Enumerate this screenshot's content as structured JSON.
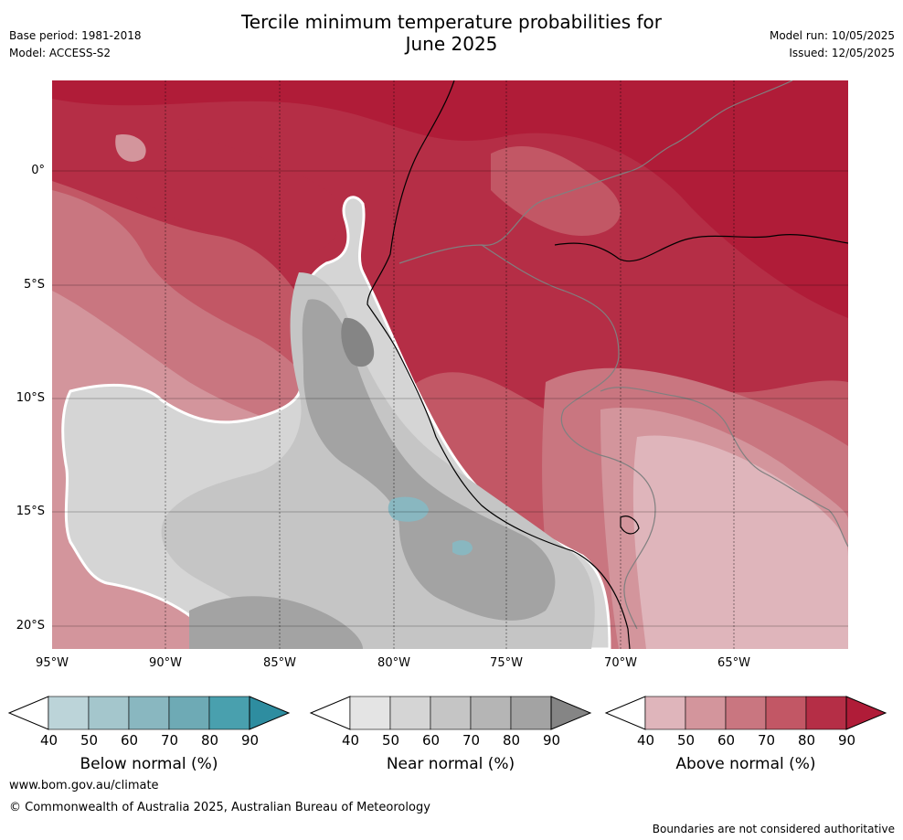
{
  "header": {
    "title_line1": "Tercile minimum temperature probabilities for",
    "title_line2": "June 2025",
    "base_period": "Base period: 1981-2018",
    "model": "Model: ACCESS-S2",
    "model_run": "Model run: 10/05/2025",
    "issued": "Issued: 12/05/2025"
  },
  "map": {
    "lat_labels": [
      "0°",
      "5°S",
      "10°S",
      "15°S",
      "20°S"
    ],
    "lon_labels": [
      "95°W",
      "90°W",
      "85°W",
      "80°W",
      "75°W",
      "70°W",
      "65°W"
    ]
  },
  "colorbars": [
    {
      "label": "Below normal (%)",
      "ticks": [
        "40",
        "50",
        "60",
        "70",
        "80",
        "90"
      ],
      "colors": [
        "#bcd4d9",
        "#a4c6cc",
        "#89b7c0",
        "#6eaab5",
        "#49a0ae",
        "#2e8da0"
      ]
    },
    {
      "label": "Near normal (%)",
      "ticks": [
        "40",
        "50",
        "60",
        "70",
        "80",
        "90"
      ],
      "colors": [
        "#e4e4e4",
        "#d5d5d5",
        "#c5c5c5",
        "#b5b5b5",
        "#a3a3a3",
        "#858585"
      ]
    },
    {
      "label": "Above normal (%)",
      "ticks": [
        "40",
        "50",
        "60",
        "70",
        "80",
        "90"
      ],
      "colors": [
        "#dfb5bb",
        "#d3959c",
        "#c97680",
        "#c25765",
        "#b52e46",
        "#b01c38"
      ]
    }
  ],
  "footer": {
    "website": "www.bom.gov.au/climate",
    "copyright": "© Commonwealth of Australia 2025, Australian Bureau of Meteorology",
    "disclaimer": "Boundaries are not considered authoritative"
  }
}
